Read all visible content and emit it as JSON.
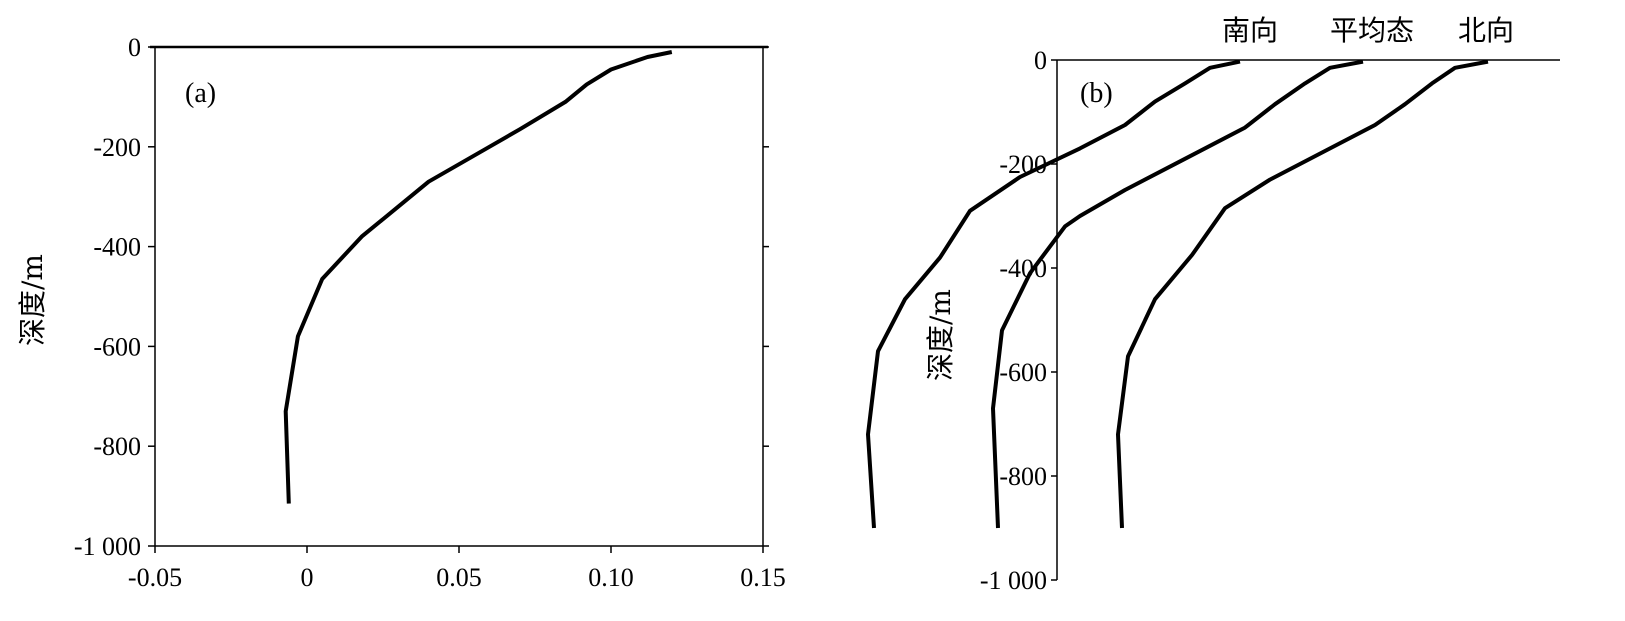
{
  "chart_data": [
    {
      "type": "line",
      "panel_label": "(a)",
      "ylabel": "深度/m",
      "xlim": [
        -0.05,
        0.15
      ],
      "ylim": [
        -1000,
        0
      ],
      "x_ticks": [
        "-0.05",
        "0",
        "0.05",
        "0.10",
        "0.15"
      ],
      "y_ticks": [
        "0",
        "-200",
        "-400",
        "-600",
        "-800",
        "-1 000"
      ],
      "series": [
        {
          "points": [
            [
              0.12,
              -10
            ],
            [
              0.112,
              -20
            ],
            [
              0.1,
              -45
            ],
            [
              0.092,
              -75
            ],
            [
              0.085,
              -110
            ],
            [
              0.07,
              -165
            ],
            [
              0.06,
              -200
            ],
            [
              0.04,
              -270
            ],
            [
              0.03,
              -320
            ],
            [
              0.018,
              -380
            ],
            [
              0.005,
              -465
            ],
            [
              -0.003,
              -580
            ],
            [
              -0.007,
              -730
            ],
            [
              -0.006,
              -915
            ]
          ]
        }
      ]
    },
    {
      "type": "line",
      "panel_label": "(b)",
      "ylabel": "深度/m",
      "ylim": [
        -1000,
        0
      ],
      "y_ticks": [
        "0",
        "-200",
        "-400",
        "-600",
        "-800",
        "-1 000"
      ],
      "series": [
        {
          "name": "南向",
          "points": [
            [
              1240,
              -3
            ],
            [
              1210,
              -15
            ],
            [
              1185,
              -45
            ],
            [
              1155,
              -80
            ],
            [
              1125,
              -125
            ],
            [
              1080,
              -170
            ],
            [
              1020,
              -225
            ],
            [
              970,
              -290
            ],
            [
              940,
              -380
            ],
            [
              905,
              -460
            ],
            [
              878,
              -560
            ],
            [
              868,
              -720
            ],
            [
              874,
              -900
            ]
          ]
        },
        {
          "name": "平均态",
          "points": [
            [
              1363,
              -3
            ],
            [
              1330,
              -15
            ],
            [
              1305,
              -45
            ],
            [
              1275,
              -85
            ],
            [
              1245,
              -130
            ],
            [
              1185,
              -190
            ],
            [
              1125,
              -250
            ],
            [
              1080,
              -300
            ],
            [
              1065,
              -320
            ],
            [
              1030,
              -410
            ],
            [
              1002,
              -520
            ],
            [
              993,
              -670
            ],
            [
              998,
              -900
            ]
          ]
        },
        {
          "name": "北向",
          "points": [
            [
              1488,
              -3
            ],
            [
              1455,
              -15
            ],
            [
              1432,
              -45
            ],
            [
              1405,
              -85
            ],
            [
              1375,
              -125
            ],
            [
              1325,
              -175
            ],
            [
              1270,
              -230
            ],
            [
              1225,
              -285
            ],
            [
              1192,
              -375
            ],
            [
              1155,
              -460
            ],
            [
              1128,
              -570
            ],
            [
              1118,
              -720
            ],
            [
              1122,
              -900
            ]
          ]
        }
      ]
    }
  ]
}
